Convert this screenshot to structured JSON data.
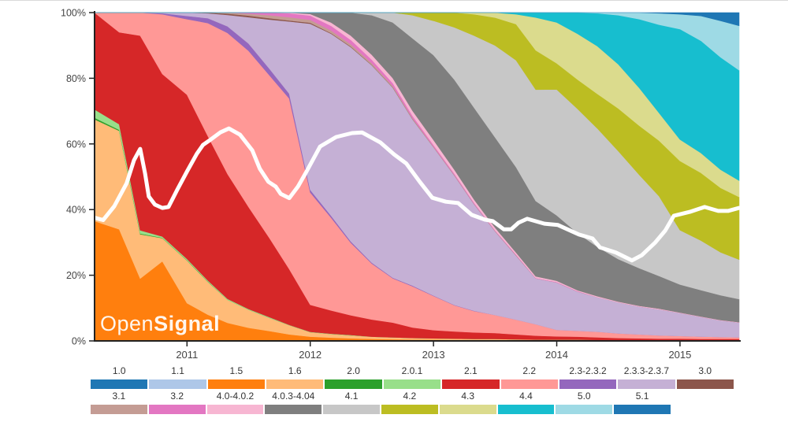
{
  "watermark": {
    "normal": "Open",
    "bold": "Signal"
  },
  "legend": {
    "rows": [
      [
        {
          "label": "1.0",
          "color": "#1f77b4"
        },
        {
          "label": "1.1",
          "color": "#aec7e8"
        },
        {
          "label": "1.5",
          "color": "#ff7f0e"
        },
        {
          "label": "1.6",
          "color": "#ffbb78"
        },
        {
          "label": "2.0",
          "color": "#2ca02c"
        },
        {
          "label": "2.0.1",
          "color": "#98df8a"
        },
        {
          "label": "2.1",
          "color": "#d62728"
        },
        {
          "label": "2.2",
          "color": "#ff9896"
        },
        {
          "label": "2.3-2.3.2",
          "color": "#9467bd"
        },
        {
          "label": "2.3.3-2.3.7",
          "color": "#c5b0d5"
        },
        {
          "label": "3.0",
          "color": "#8c564b"
        }
      ],
      [
        {
          "label": "3.1",
          "color": "#c49c94"
        },
        {
          "label": "3.2",
          "color": "#e377c2"
        },
        {
          "label": "4.0-4.0.2",
          "color": "#f7b6d2"
        },
        {
          "label": "4.0.3-4.04",
          "color": "#7f7f7f"
        },
        {
          "label": "4.1",
          "color": "#c7c7c7"
        },
        {
          "label": "4.2",
          "color": "#bcbd22"
        },
        {
          "label": "4.3",
          "color": "#dbdb8d"
        },
        {
          "label": "4.4",
          "color": "#17becf"
        },
        {
          "label": "5.0",
          "color": "#9edae5"
        },
        {
          "label": "5.1",
          "color": "#1f77b4"
        }
      ]
    ]
  },
  "chart_data": {
    "type": "area",
    "stacked": true,
    "units": "percent",
    "grid": false,
    "x_range": [
      2010.25,
      2015.48
    ],
    "ylim": [
      0,
      100
    ],
    "y_ticks": [
      {
        "value": 0,
        "label": "0%"
      },
      {
        "value": 20,
        "label": "20%"
      },
      {
        "value": 40,
        "label": "40%"
      },
      {
        "value": 60,
        "label": "60%"
      },
      {
        "value": 80,
        "label": "80%"
      },
      {
        "value": 100,
        "label": "100%"
      }
    ],
    "x_ticks": [
      {
        "value": 2011,
        "label": "2011"
      },
      {
        "value": 2012,
        "label": "2012"
      },
      {
        "value": 2013,
        "label": "2013"
      },
      {
        "value": 2014,
        "label": "2014"
      },
      {
        "value": 2015,
        "label": "2015"
      }
    ],
    "times": [
      2010.25,
      2010.45,
      2010.62,
      2010.8,
      2011.0,
      2011.17,
      2011.33,
      2011.5,
      2011.67,
      2011.83,
      2012.0,
      2012.17,
      2012.33,
      2012.5,
      2012.67,
      2012.83,
      2013.0,
      2013.17,
      2013.33,
      2013.5,
      2013.67,
      2013.83,
      2014.0,
      2014.17,
      2014.33,
      2014.5,
      2014.67,
      2014.83,
      2015.0,
      2015.17,
      2015.33,
      2015.48
    ],
    "series": [
      {
        "name": "1.0",
        "color": "#1f77b4",
        "values": [
          0,
          0,
          0,
          0,
          0,
          0,
          0,
          0,
          0,
          0,
          0,
          0,
          0,
          0,
          0,
          0,
          0,
          0,
          0,
          0,
          0,
          0,
          0,
          0,
          0,
          0,
          0,
          0,
          0,
          0,
          0,
          0
        ]
      },
      {
        "name": "1.1",
        "color": "#aec7e8",
        "values": [
          0,
          0,
          0,
          0,
          0,
          0,
          0,
          0,
          0,
          0,
          0,
          0,
          0,
          0,
          0,
          0,
          0,
          0,
          0,
          0,
          0,
          0,
          0,
          0,
          0,
          0,
          0,
          0,
          0,
          0,
          0,
          0
        ]
      },
      {
        "name": "1.5",
        "color": "#ff7f0e",
        "values": [
          36.5,
          34,
          19,
          24,
          11.5,
          8,
          5.5,
          4,
          3,
          2,
          1.3,
          1,
          0.8,
          0.6,
          0.5,
          0.4,
          0.4,
          0.3,
          0.3,
          0.3,
          0.2,
          0.2,
          0.2,
          0.2,
          0.1,
          0.1,
          0.1,
          0.1,
          0.1,
          0.1,
          0.1,
          0.1
        ]
      },
      {
        "name": "1.6",
        "color": "#ffbb78",
        "values": [
          31,
          30,
          13.5,
          7,
          13,
          10,
          7,
          5.5,
          4,
          2.8,
          1.4,
          1.1,
          0.9,
          0.7,
          0.6,
          0.5,
          0.4,
          0.4,
          0.3,
          0.3,
          0.3,
          0.2,
          0.2,
          0.2,
          0.2,
          0.1,
          0.1,
          0.1,
          0.1,
          0.1,
          0.1,
          0.1
        ]
      },
      {
        "name": "2.0",
        "color": "#2ca02c",
        "values": [
          0.5,
          0.3,
          0.2,
          0.1,
          0.1,
          0.1,
          0,
          0,
          0,
          0,
          0,
          0,
          0,
          0,
          0,
          0,
          0,
          0,
          0,
          0,
          0,
          0,
          0,
          0,
          0,
          0,
          0,
          0,
          0,
          0,
          0,
          0
        ]
      },
      {
        "name": "2.0.1",
        "color": "#98df8a",
        "values": [
          2.5,
          1.7,
          1,
          0.4,
          0.4,
          0.3,
          0.3,
          0.2,
          0.2,
          0.1,
          0.1,
          0.1,
          0.1,
          0,
          0,
          0,
          0,
          0,
          0,
          0,
          0,
          0,
          0,
          0,
          0,
          0,
          0,
          0,
          0,
          0,
          0,
          0
        ]
      },
      {
        "name": "2.1",
        "color": "#d62728",
        "values": [
          29.5,
          28,
          59.3,
          49,
          50,
          44,
          38,
          31,
          24,
          17,
          8.3,
          7,
          6,
          5.2,
          4.5,
          3.2,
          2.5,
          2.2,
          2,
          1.8,
          1.5,
          1.2,
          1,
          0.9,
          0.8,
          0.7,
          0.6,
          0.5,
          0.5,
          0.4,
          0.4,
          0.4
        ]
      },
      {
        "name": "2.2",
        "color": "#ff9896",
        "values": [
          0,
          6,
          7,
          18,
          23,
          34.5,
          43,
          47.5,
          49.5,
          52,
          34.5,
          28,
          22,
          17,
          13.5,
          12.5,
          10.5,
          8,
          6.5,
          5.5,
          4.5,
          3.5,
          2,
          1.8,
          1.7,
          1.4,
          1.2,
          1,
          0.8,
          0.7,
          0.6,
          0.5
        ]
      },
      {
        "name": "2.3-2.3.2",
        "color": "#9467bd",
        "values": [
          0,
          0,
          0,
          0.3,
          1,
          1.5,
          2,
          2.2,
          2,
          1.5,
          0.8,
          0.6,
          0.4,
          0.3,
          0.2,
          0.2,
          0.1,
          0.1,
          0.1,
          0,
          0,
          0,
          0,
          0,
          0,
          0,
          0,
          0,
          0,
          0,
          0,
          0
        ]
      },
      {
        "name": "2.3.3-2.3.7",
        "color": "#c5b0d5",
        "values": [
          0,
          0,
          0,
          0.2,
          1,
          1.5,
          3.5,
          8,
          15,
          22,
          51,
          55,
          59,
          60,
          58,
          50.5,
          45.5,
          39.5,
          32.5,
          25.5,
          19.5,
          14,
          14.5,
          12,
          10.5,
          9.5,
          8.5,
          8,
          7,
          6,
          5,
          4.5
        ]
      },
      {
        "name": "3.0",
        "color": "#8c564b",
        "values": [
          0,
          0,
          0,
          0,
          0,
          0.2,
          0.4,
          0.5,
          0.4,
          0.3,
          0.3,
          0.2,
          0.2,
          0.1,
          0.1,
          0.1,
          0,
          0,
          0,
          0,
          0,
          0,
          0,
          0,
          0,
          0,
          0,
          0,
          0,
          0,
          0,
          0
        ]
      },
      {
        "name": "3.1",
        "color": "#c49c94",
        "values": [
          0,
          0,
          0,
          0,
          0,
          0,
          0.3,
          0.6,
          0.9,
          1,
          0.9,
          0.8,
          0.7,
          0.5,
          0.4,
          0.3,
          0.2,
          0.2,
          0.1,
          0.1,
          0.1,
          0,
          0,
          0,
          0,
          0,
          0,
          0,
          0,
          0,
          0,
          0
        ]
      },
      {
        "name": "3.2",
        "color": "#e377c2",
        "values": [
          0,
          0,
          0,
          0,
          0,
          0,
          0,
          0.3,
          0.8,
          1.2,
          1.3,
          1.4,
          1.3,
          1.1,
          0.9,
          0.7,
          0.5,
          0.4,
          0.3,
          0.2,
          0.2,
          0.1,
          0.1,
          0.1,
          0,
          0,
          0,
          0,
          0,
          0,
          0,
          0
        ]
      },
      {
        "name": "4.0-4.0.2",
        "color": "#f7b6d2",
        "values": [
          0,
          0,
          0,
          0,
          0,
          0,
          0,
          0,
          0,
          0.2,
          0.5,
          1,
          1.3,
          1.5,
          1.5,
          1.5,
          1.5,
          1.2,
          1,
          0.8,
          0.6,
          0.5,
          0.4,
          0.3,
          0.3,
          0.2,
          0.2,
          0.2,
          0.1,
          0.1,
          0.1,
          0.1
        ]
      },
      {
        "name": "4.0.3-4.04",
        "color": "#7f7f7f",
        "values": [
          0,
          0,
          0,
          0,
          0,
          0,
          0,
          0,
          0,
          0,
          0.4,
          3,
          7,
          12,
          17,
          22,
          26,
          27.5,
          28,
          27.5,
          26,
          23,
          20,
          17.5,
          15,
          13,
          11.5,
          10,
          8.5,
          8,
          7.5,
          7
        ]
      },
      {
        "name": "4.1",
        "color": "#c7c7c7",
        "values": [
          0,
          0,
          0,
          0,
          0,
          0,
          0,
          0,
          0,
          0,
          0,
          0,
          0,
          0.8,
          3,
          7,
          10.5,
          16,
          22,
          28,
          32.5,
          34,
          38.5,
          38,
          36,
          33,
          28.5,
          24.5,
          16.5,
          15,
          13,
          12
        ]
      },
      {
        "name": "4.2",
        "color": "#bcbd22",
        "values": [
          0,
          0,
          0,
          0,
          0,
          0,
          0,
          0,
          0,
          0,
          0,
          0,
          0,
          0,
          0,
          0.8,
          2.5,
          4.5,
          6.5,
          8.5,
          11,
          12,
          8,
          9,
          10.5,
          13,
          15,
          17,
          21,
          20.5,
          19.5,
          19
        ]
      },
      {
        "name": "4.3",
        "color": "#dbdb8d",
        "values": [
          0,
          0,
          0,
          0,
          0,
          0,
          0,
          0,
          0,
          0,
          0,
          0,
          0,
          0,
          0,
          0,
          0,
          0,
          0.5,
          1.5,
          3,
          10,
          12.5,
          14,
          14.5,
          13.5,
          11.5,
          8.5,
          6.5,
          6,
          5.5,
          5
        ]
      },
      {
        "name": "4.4",
        "color": "#17becf",
        "values": [
          0,
          0,
          0,
          0,
          0,
          0,
          0,
          0,
          0,
          0,
          0,
          0,
          0,
          0,
          0,
          0,
          0,
          0,
          0,
          0,
          0.5,
          1.5,
          3,
          6.5,
          10,
          15,
          21,
          27,
          33.5,
          34,
          34,
          33.5
        ]
      },
      {
        "name": "5.0",
        "color": "#9edae5",
        "values": [
          0,
          0,
          0,
          0,
          0,
          0,
          0,
          0,
          0,
          0,
          0,
          0,
          0,
          0,
          0,
          0,
          0,
          0,
          0,
          0,
          0,
          0,
          0,
          0,
          0.2,
          0.8,
          2,
          3.5,
          4.5,
          7.5,
          11,
          13.5
        ]
      },
      {
        "name": "5.1",
        "color": "#1f77b4",
        "values": [
          0,
          0,
          0,
          0,
          0,
          0,
          0,
          0,
          0,
          0,
          0,
          0,
          0,
          0,
          0,
          0,
          0,
          0,
          0,
          0,
          0,
          0,
          0,
          0,
          0,
          0,
          0,
          0.2,
          0.5,
          1,
          2.5,
          4
        ]
      }
    ],
    "overlay_line": {
      "color": "#ffffff",
      "points": [
        [
          2010.25,
          37.5
        ],
        [
          2010.32,
          36.8
        ],
        [
          2010.41,
          41
        ],
        [
          2010.51,
          48
        ],
        [
          2010.57,
          55
        ],
        [
          2010.62,
          58.5
        ],
        [
          2010.66,
          51
        ],
        [
          2010.69,
          44
        ],
        [
          2010.74,
          41.5
        ],
        [
          2010.8,
          40.5
        ],
        [
          2010.85,
          40.8
        ],
        [
          2010.92,
          46
        ],
        [
          2011.0,
          51.6
        ],
        [
          2011.08,
          57
        ],
        [
          2011.13,
          59.7
        ],
        [
          2011.18,
          61
        ],
        [
          2011.27,
          63.5
        ],
        [
          2011.34,
          64.7
        ],
        [
          2011.43,
          62.8
        ],
        [
          2011.53,
          58
        ],
        [
          2011.59,
          52.5
        ],
        [
          2011.66,
          48.5
        ],
        [
          2011.72,
          47
        ],
        [
          2011.76,
          44.8
        ],
        [
          2011.83,
          43.5
        ],
        [
          2011.9,
          47
        ],
        [
          2011.97,
          51.6
        ],
        [
          2012.08,
          59.2
        ],
        [
          2012.21,
          62.1
        ],
        [
          2012.34,
          63.3
        ],
        [
          2012.42,
          63.5
        ],
        [
          2012.57,
          60.4
        ],
        [
          2012.68,
          56.8
        ],
        [
          2012.78,
          54
        ],
        [
          2012.89,
          48.4
        ],
        [
          2012.99,
          43.6
        ],
        [
          2013.1,
          42.4
        ],
        [
          2013.2,
          42
        ],
        [
          2013.31,
          38.4
        ],
        [
          2013.42,
          36.9
        ],
        [
          2013.48,
          36.5
        ],
        [
          2013.57,
          34
        ],
        [
          2013.63,
          34
        ],
        [
          2013.69,
          36
        ],
        [
          2013.76,
          37.2
        ],
        [
          2013.9,
          35.7
        ],
        [
          2014.01,
          35.3
        ],
        [
          2014.18,
          32.4
        ],
        [
          2014.29,
          31.2
        ],
        [
          2014.35,
          28.5
        ],
        [
          2014.48,
          26.9
        ],
        [
          2014.61,
          24.5
        ],
        [
          2014.69,
          26.1
        ],
        [
          2014.8,
          30
        ],
        [
          2014.88,
          33.6
        ],
        [
          2014.95,
          38.1
        ],
        [
          2015.08,
          39.3
        ],
        [
          2015.2,
          40.8
        ],
        [
          2015.31,
          39.6
        ],
        [
          2015.39,
          39.6
        ],
        [
          2015.48,
          40.5
        ]
      ]
    }
  }
}
